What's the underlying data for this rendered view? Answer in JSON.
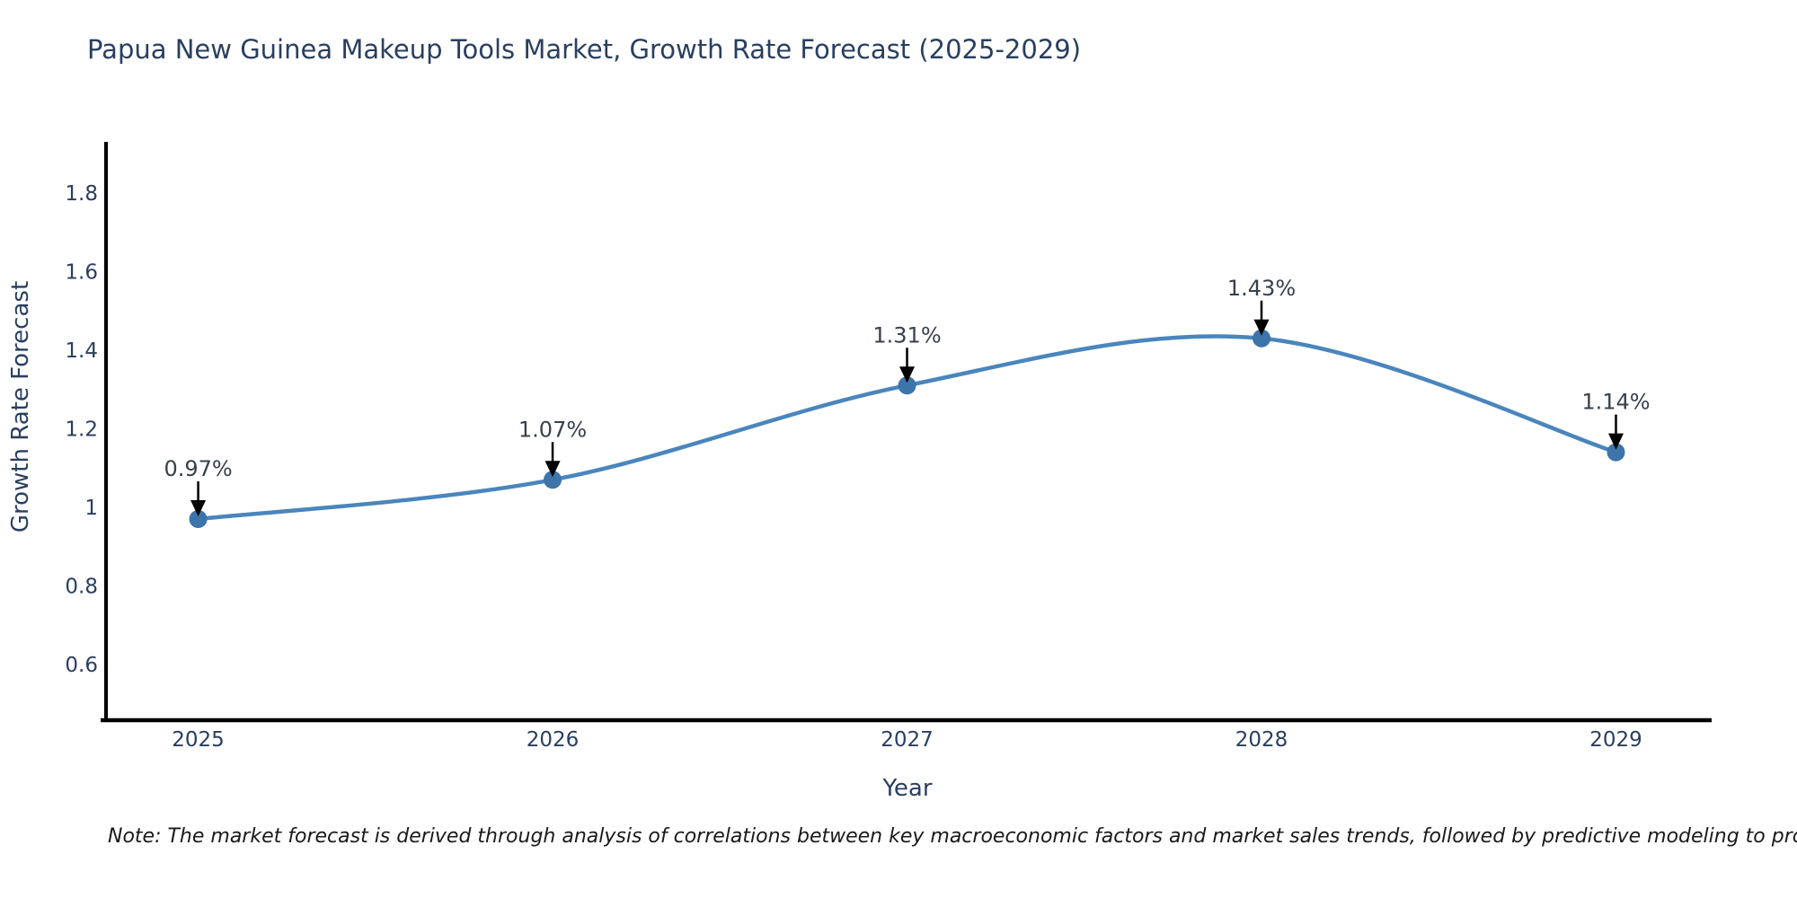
{
  "note": "Note: The market forecast is derived through analysis of correlations between key macroeconomic factors and market sales trends, followed by predictive modeling to project future sales",
  "chart_data": {
    "type": "line",
    "title": "Papua New Guinea Makeup Tools Market, Growth Rate Forecast (2025-2029)",
    "xlabel": "Year",
    "ylabel": "Growth Rate Forecast",
    "categories": [
      "2025",
      "2026",
      "2027",
      "2028",
      "2029"
    ],
    "x": [
      2025,
      2026,
      2027,
      2028,
      2029
    ],
    "values": [
      0.97,
      1.07,
      1.31,
      1.43,
      1.14
    ],
    "point_labels": [
      "0.97%",
      "1.07%",
      "1.31%",
      "1.43%",
      "1.14%"
    ],
    "y_ticks": [
      0.6,
      0.8,
      1,
      1.2,
      1.4,
      1.6,
      1.8
    ],
    "ylim": [
      0.458,
      1.93
    ],
    "xlim": [
      2024.74,
      2029.27
    ],
    "grid": false,
    "legend_position": "none",
    "line_shape": "spline",
    "annotation_style": "label-with-down-arrow",
    "colors": {
      "line": "#4a85bd",
      "marker": "#3d74a9",
      "axis": "#000000",
      "tick_text": "#2a3f5f",
      "annotation_text": "#38404c",
      "arrow": "#000000",
      "background": "#ffffff"
    }
  }
}
